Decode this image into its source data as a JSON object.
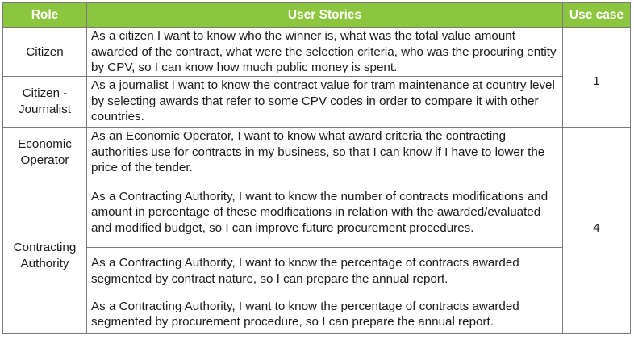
{
  "headers": {
    "role": "Role",
    "stories": "User Stories",
    "use_case": "Use case"
  },
  "rows": [
    {
      "role": "Citizen",
      "story": "As a citizen I want to know who the winner is, what was the total value amount awarded of the contract, what were the selection criteria, who was the procuring entity by CPV, so I can know how much public money is spent."
    },
    {
      "role": "Citizen - Journalist",
      "story": "As a journalist I want to know the contract value for tram maintenance at country level by selecting awards that refer to some CPV codes in order to compare it with other countries."
    },
    {
      "role": "Economic Operator",
      "story": "As an Economic Operator, I want to know what award criteria the contracting authorities use for contracts in my business, so that I can know if I have to lower the price of the tender."
    },
    {
      "role": "Contracting Authority",
      "story": "As a Contracting Authority, I want to know the number of contracts modifications and amount in percentage of these modifications in relation with the awarded/evaluated and modified budget, so I can improve future procurement procedures."
    },
    {
      "story": "As a Contracting Authority, I want to know the percentage of contracts awarded segmented by contract nature, so I can prepare the annual report."
    },
    {
      "story": "As a Contracting Authority, I want to know the percentage of contracts awarded segmented by procurement procedure, so I can prepare the annual report."
    }
  ],
  "use_cases": [
    "1",
    "4"
  ]
}
